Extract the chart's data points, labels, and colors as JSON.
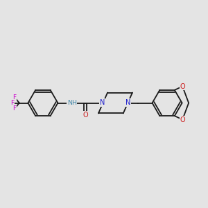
{
  "background_color": "#e4e4e4",
  "bond_color": "#1a1a1a",
  "N_color": "#1a1acc",
  "O_color": "#cc1a1a",
  "F_color": "#cc00cc",
  "H_color": "#4488aa",
  "figsize": [
    3.0,
    3.0
  ],
  "dpi": 100,
  "xlim": [
    0,
    10
  ],
  "ylim": [
    2,
    8
  ]
}
